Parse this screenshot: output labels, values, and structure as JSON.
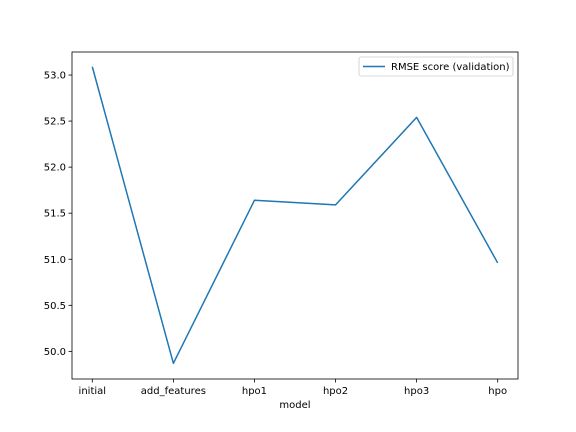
{
  "chart_data": {
    "type": "line",
    "title": "",
    "xlabel": "model",
    "ylabel": "",
    "categories": [
      "initial",
      "add_features",
      "hpo1",
      "hpo2",
      "hpo3",
      "hpo"
    ],
    "series": [
      {
        "name": "RMSE score (validation)",
        "color": "#1f77b4",
        "values": [
          53.09,
          49.87,
          51.64,
          51.59,
          52.54,
          50.96
        ]
      }
    ],
    "ylim": [
      49.7,
      53.25
    ],
    "yticks": [
      50.0,
      50.5,
      51.0,
      51.5,
      52.0,
      52.5,
      53.0
    ],
    "ytick_labels": [
      "50.0",
      "50.5",
      "51.0",
      "51.5",
      "52.0",
      "52.5",
      "53.0"
    ],
    "grid": false,
    "legend_position": "top-right"
  }
}
